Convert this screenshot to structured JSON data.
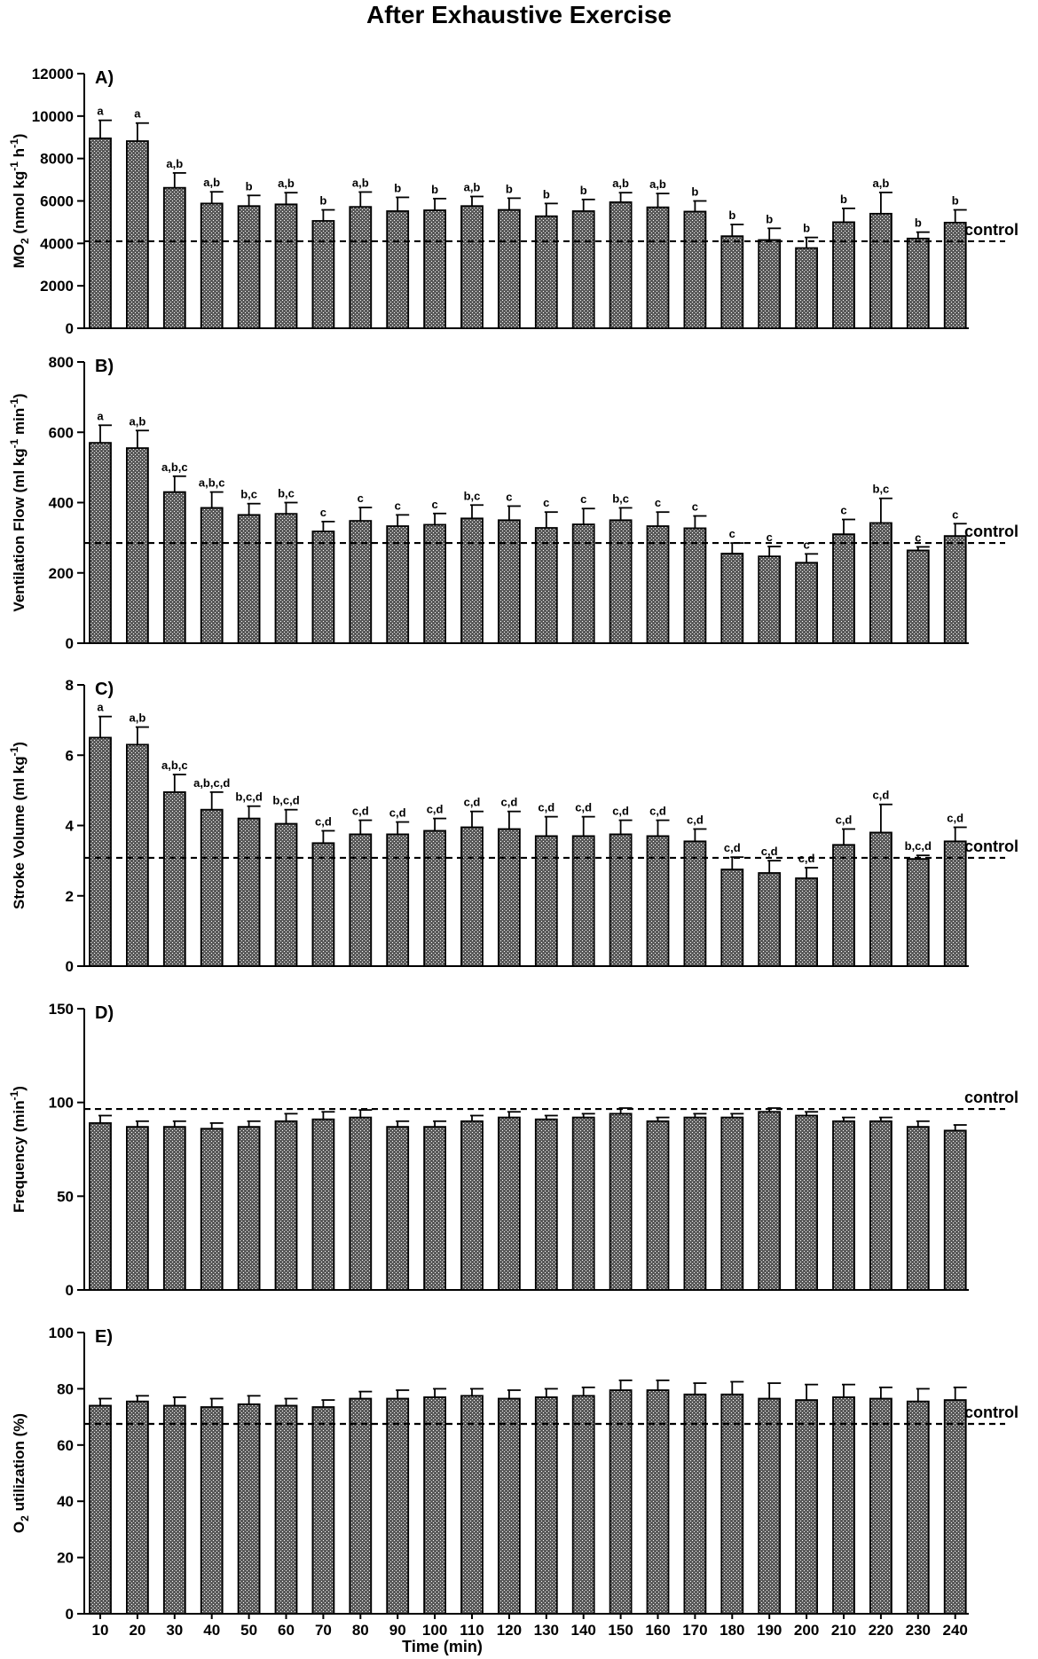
{
  "title": "After Exhaustive Exercise",
  "x_axis_title": "Time (min)",
  "control_label": "control",
  "chart_data": [
    {
      "type": "bar",
      "panel": "A)",
      "ylabel": "MO2 (nmol kg-1 h-1)",
      "ylabel_parts": [
        {
          "text": "MO",
          "sup": false,
          "sub": false
        },
        {
          "text": "2",
          "sub": true
        },
        {
          "text": " (nmol kg",
          "sub": false
        },
        {
          "text": "-1",
          "sup": true
        },
        {
          "text": " h",
          "sub": false
        },
        {
          "text": "-1",
          "sup": true
        },
        {
          "text": ")",
          "sub": false
        }
      ],
      "ylim": [
        0,
        12000
      ],
      "yticks": [
        0,
        2000,
        4000,
        6000,
        8000,
        10000,
        12000
      ],
      "categories": [
        10,
        20,
        30,
        40,
        50,
        60,
        70,
        80,
        90,
        100,
        110,
        120,
        130,
        140,
        150,
        160,
        170,
        180,
        190,
        200,
        210,
        220,
        230,
        240
      ],
      "values": [
        8950,
        8820,
        6620,
        5880,
        5760,
        5840,
        5060,
        5720,
        5520,
        5560,
        5760,
        5580,
        5280,
        5520,
        5940,
        5700,
        5500,
        4340,
        4160,
        3780,
        5000,
        5400,
        4230,
        4980
      ],
      "errors": [
        850,
        850,
        700,
        550,
        500,
        550,
        520,
        700,
        650,
        550,
        450,
        550,
        600,
        550,
        450,
        650,
        500,
        550,
        550,
        500,
        650,
        1000,
        300,
        600
      ],
      "sig": [
        "a",
        "a",
        "a,b",
        "a,b",
        "b",
        "a,b",
        "b",
        "a,b",
        "b",
        "b",
        "a,b",
        "b",
        "b",
        "b",
        "a,b",
        "a,b",
        "b",
        "b",
        "b",
        "b",
        "b",
        "a,b",
        "b",
        "b"
      ],
      "control": 4100
    },
    {
      "type": "bar",
      "panel": "B)",
      "ylabel": "Ventilation Flow (ml kg-1 min-1)",
      "ylabel_parts": [
        {
          "text": "Ventilation Flow (ml kg",
          "sub": false
        },
        {
          "text": "-1",
          "sup": true
        },
        {
          "text": " min",
          "sub": false
        },
        {
          "text": "-1",
          "sup": true
        },
        {
          "text": ")",
          "sub": false
        }
      ],
      "ylim": [
        0,
        800
      ],
      "yticks": [
        0,
        200,
        400,
        600,
        800
      ],
      "categories": [
        10,
        20,
        30,
        40,
        50,
        60,
        70,
        80,
        90,
        100,
        110,
        120,
        130,
        140,
        150,
        160,
        170,
        180,
        190,
        200,
        210,
        220,
        230,
        240
      ],
      "values": [
        570,
        555,
        430,
        385,
        365,
        368,
        318,
        348,
        333,
        337,
        355,
        350,
        328,
        338,
        350,
        333,
        327,
        255,
        247,
        229,
        310,
        342,
        264,
        305
      ],
      "errors": [
        50,
        50,
        45,
        45,
        32,
        32,
        28,
        38,
        32,
        32,
        38,
        40,
        45,
        45,
        35,
        40,
        35,
        30,
        28,
        25,
        42,
        70,
        10,
        35
      ],
      "sig": [
        "a",
        "a,b",
        "a,b,c",
        "a,b,c",
        "b,c",
        "b,c",
        "c",
        "c",
        "c",
        "c",
        "b,c",
        "c",
        "c",
        "c",
        "b,c",
        "c",
        "c",
        "c",
        "c",
        "c",
        "c",
        "b,c",
        "c",
        "c"
      ],
      "control": 285
    },
    {
      "type": "bar",
      "panel": "C)",
      "ylabel": "Stroke Volume (ml kg-1)",
      "ylabel_parts": [
        {
          "text": "Stroke Volume (ml kg",
          "sub": false
        },
        {
          "text": "-1",
          "sup": true
        },
        {
          "text": ")",
          "sub": false
        }
      ],
      "ylim": [
        0,
        8
      ],
      "yticks": [
        0,
        2,
        4,
        6,
        8
      ],
      "categories": [
        10,
        20,
        30,
        40,
        50,
        60,
        70,
        80,
        90,
        100,
        110,
        120,
        130,
        140,
        150,
        160,
        170,
        180,
        190,
        200,
        210,
        220,
        230,
        240
      ],
      "values": [
        6.5,
        6.3,
        4.95,
        4.45,
        4.2,
        4.05,
        3.5,
        3.75,
        3.75,
        3.85,
        3.95,
        3.9,
        3.7,
        3.7,
        3.75,
        3.7,
        3.55,
        2.75,
        2.65,
        2.5,
        3.45,
        3.8,
        3.05,
        3.55
      ],
      "errors": [
        0.6,
        0.5,
        0.5,
        0.5,
        0.35,
        0.4,
        0.35,
        0.4,
        0.35,
        0.35,
        0.45,
        0.5,
        0.55,
        0.55,
        0.4,
        0.45,
        0.35,
        0.35,
        0.35,
        0.3,
        0.45,
        0.8,
        0.1,
        0.4
      ],
      "sig": [
        "a",
        "a,b",
        "a,b,c",
        "a,b,c,d",
        "b,c,d",
        "b,c,d",
        "c,d",
        "c,d",
        "c,d",
        "c,d",
        "c,d",
        "c,d",
        "c,d",
        "c,d",
        "c,d",
        "c,d",
        "c,d",
        "c,d",
        "c,d",
        "c,d",
        "c,d",
        "c,d",
        "b,c,d",
        "c,d"
      ],
      "control": 3.08
    },
    {
      "type": "bar",
      "panel": "D)",
      "ylabel": "Frequency (min-1)",
      "ylabel_parts": [
        {
          "text": "Frequency (min",
          "sub": false
        },
        {
          "text": "-1",
          "sup": true
        },
        {
          "text": ")",
          "sub": false
        }
      ],
      "ylim": [
        0,
        150
      ],
      "yticks": [
        0,
        50,
        100,
        150
      ],
      "categories": [
        10,
        20,
        30,
        40,
        50,
        60,
        70,
        80,
        90,
        100,
        110,
        120,
        130,
        140,
        150,
        160,
        170,
        180,
        190,
        200,
        210,
        220,
        230,
        240
      ],
      "values": [
        89,
        87,
        87,
        86,
        87,
        90,
        91,
        92,
        87,
        87,
        90,
        92,
        91,
        92,
        94,
        90,
        92,
        92,
        95,
        93,
        90,
        90,
        87,
        85
      ],
      "errors": [
        4,
        3,
        3,
        3,
        3,
        4,
        4,
        4,
        3,
        3,
        3,
        3,
        2,
        2,
        3,
        2,
        2,
        2,
        2,
        2,
        2,
        2,
        3,
        3
      ],
      "sig": [],
      "control": 96.5
    },
    {
      "type": "bar",
      "panel": "E)",
      "ylabel": "O2 utilization (%)",
      "ylabel_parts": [
        {
          "text": "O",
          "sub": false
        },
        {
          "text": "2",
          "sub": true
        },
        {
          "text": " utilization (%)",
          "sub": false
        }
      ],
      "ylim": [
        0,
        100
      ],
      "yticks": [
        0,
        20,
        40,
        60,
        80,
        100
      ],
      "categories": [
        10,
        20,
        30,
        40,
        50,
        60,
        70,
        80,
        90,
        100,
        110,
        120,
        130,
        140,
        150,
        160,
        170,
        180,
        190,
        200,
        210,
        220,
        230,
        240
      ],
      "values": [
        74,
        75.5,
        74,
        73.5,
        74.5,
        74,
        73.5,
        76.5,
        76.5,
        77,
        77.5,
        76.5,
        77,
        77.5,
        79.5,
        79.5,
        78,
        78,
        76.5,
        76,
        77,
        76.5,
        75.5,
        76
      ],
      "errors": [
        2.5,
        2,
        3,
        3,
        3,
        2.5,
        2.5,
        2.5,
        3,
        3,
        2.5,
        3,
        3,
        3,
        3.5,
        3.5,
        4,
        4.5,
        5.5,
        5.5,
        4.5,
        4,
        4.5,
        4.5
      ],
      "sig": [],
      "control": 67.5
    }
  ]
}
